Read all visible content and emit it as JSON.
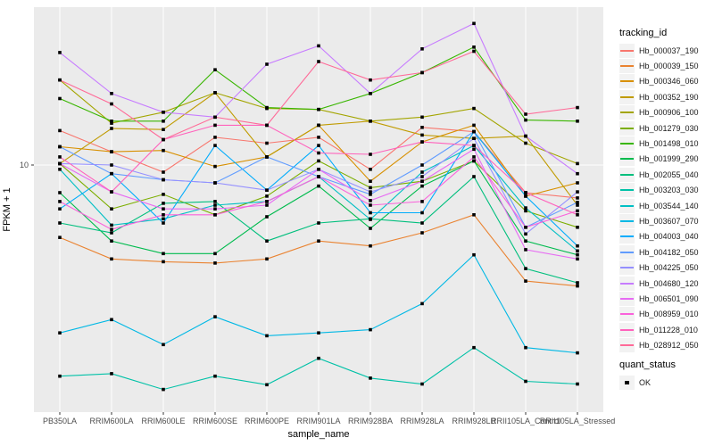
{
  "figure": {
    "y_axis": {
      "title": "FPKM + 1",
      "tick_label": "10"
    },
    "x_axis": {
      "title": "sample_name"
    },
    "legend_title": "tracking_id",
    "quant_legend": {
      "title": "quant_status",
      "item_label": "OK"
    },
    "colors": {
      "panel_bg": "#EBEBEB",
      "gridline": "#FFFFFF",
      "legend_key_bg": "#F2F2F2",
      "point": "#000000",
      "tick_text": "#4D4D4D"
    }
  },
  "chart_data": {
    "type": "line",
    "title": "",
    "xlabel": "sample_name",
    "ylabel": "FPKM + 1",
    "y_scale": "log10",
    "y_ticks": [
      10
    ],
    "ylim": [
      1.7,
      31
    ],
    "grid": "major-only",
    "legend_position": "right",
    "point_marker": "black-square",
    "categories": [
      "PB350LA",
      "RRIM600LA",
      "RRIM600LE",
      "RRIM600SE",
      "RRIM600PE",
      "RRIM901LA",
      "RRIM928BA",
      "RRIM928LA",
      "RRIM928LB",
      "RRII105LA_Control",
      "RRII105LA_Stressed"
    ],
    "series": [
      {
        "name": "Hb_000037_190",
        "color": "#F8766D",
        "values": [
          12.8,
          11.0,
          9.5,
          12.2,
          11.7,
          12.2,
          9.7,
          13.1,
          12.7,
          8.2,
          7.9
        ]
      },
      {
        "name": "Hb_000039_150",
        "color": "#EA8331",
        "values": [
          5.95,
          5.1,
          5.0,
          4.95,
          5.1,
          5.8,
          5.6,
          6.15,
          7.0,
          4.35,
          4.2
        ]
      },
      {
        "name": "Hb_000346_060",
        "color": "#D89000",
        "values": [
          11.4,
          11.0,
          11.1,
          9.9,
          10.6,
          13.3,
          8.9,
          11.8,
          13.3,
          8.0,
          8.8
        ]
      },
      {
        "name": "Hb_000352_190",
        "color": "#C09B00",
        "values": [
          10.1,
          13.0,
          12.9,
          16.8,
          10.6,
          13.3,
          13.7,
          12.4,
          12.1,
          12.3,
          7.5
        ]
      },
      {
        "name": "Hb_000906_100",
        "color": "#A3A500",
        "values": [
          18.4,
          13.5,
          14.6,
          16.8,
          15.0,
          14.9,
          13.7,
          14.1,
          15.0,
          11.7,
          10.1
        ]
      },
      {
        "name": "Hb_001279_030",
        "color": "#7CAE00",
        "values": [
          10.1,
          7.3,
          8.1,
          7.0,
          8.0,
          10.3,
          8.5,
          8.9,
          10.3,
          7.2,
          6.4
        ]
      },
      {
        "name": "Hb_001498_010",
        "color": "#39B600",
        "values": [
          16.1,
          13.7,
          13.7,
          19.8,
          15.1,
          14.9,
          16.7,
          19.4,
          23.3,
          13.8,
          13.7
        ]
      },
      {
        "name": "Hb_001999_290",
        "color": "#00BB4E",
        "values": [
          8.2,
          5.8,
          5.3,
          5.3,
          6.9,
          8.6,
          6.35,
          8.6,
          10.3,
          5.8,
          5.25
        ]
      },
      {
        "name": "Hb_002055_040",
        "color": "#00BF7D",
        "values": [
          6.6,
          6.15,
          7.6,
          7.7,
          5.8,
          6.6,
          6.8,
          6.6,
          9.2,
          4.76,
          4.3
        ]
      },
      {
        "name": "Hb_003203_030",
        "color": "#00C1A7",
        "values": [
          2.2,
          2.24,
          2.0,
          2.2,
          2.07,
          2.5,
          2.17,
          2.08,
          2.7,
          2.12,
          2.08
        ]
      },
      {
        "name": "Hb_003544_140",
        "color": "#00BFC4",
        "values": [
          9.7,
          6.5,
          6.8,
          7.5,
          7.7,
          9.2,
          6.77,
          9.5,
          11.5,
          7.35,
          5.4
        ]
      },
      {
        "name": "Hb_003607_070",
        "color": "#00B8E5",
        "values": [
          3.0,
          3.3,
          2.76,
          3.37,
          2.94,
          3.0,
          3.07,
          3.7,
          5.25,
          2.7,
          2.6
        ]
      },
      {
        "name": "Hb_004003_040",
        "color": "#00ACFC",
        "values": [
          7.3,
          9.4,
          6.6,
          11.5,
          8.35,
          11.5,
          7.1,
          7.1,
          12.7,
          8.0,
          5.6
        ]
      },
      {
        "name": "Hb_004182_050",
        "color": "#619CFF",
        "values": [
          11.4,
          9.4,
          9.0,
          8.8,
          10.6,
          9.2,
          8.1,
          10.0,
          12.7,
          6.4,
          7.65
        ]
      },
      {
        "name": "Hb_004225_050",
        "color": "#9590FF",
        "values": [
          10.1,
          10.0,
          9.0,
          8.8,
          8.35,
          9.7,
          8.25,
          9.2,
          12.1,
          6.1,
          8.25
        ]
      },
      {
        "name": "Hb_004680_120",
        "color": "#C77CFF",
        "values": [
          22.4,
          16.7,
          14.6,
          14.1,
          20.6,
          23.5,
          16.7,
          23.0,
          27.6,
          12.3,
          9.4
        ]
      },
      {
        "name": "Hb_006501_090",
        "color": "#E76BF3",
        "values": [
          10.1,
          8.25,
          7.3,
          7.3,
          7.5,
          9.7,
          7.75,
          8.9,
          11.2,
          5.45,
          5.1
        ]
      },
      {
        "name": "Hb_008959_010",
        "color": "#FA62DB",
        "values": [
          7.7,
          6.3,
          7.0,
          7.0,
          7.7,
          9.2,
          7.5,
          7.7,
          10.6,
          6.4,
          7.2
        ]
      },
      {
        "name": "Hb_011228_010",
        "color": "#FF62BC",
        "values": [
          10.6,
          8.25,
          12.0,
          13.3,
          13.3,
          10.9,
          10.8,
          11.8,
          11.5,
          8.2,
          7.0
        ]
      },
      {
        "name": "Hb_028912_050",
        "color": "#FF6A98",
        "values": [
          18.4,
          15.5,
          12.0,
          14.1,
          13.3,
          21.0,
          18.4,
          19.4,
          22.6,
          14.4,
          15.1
        ]
      }
    ],
    "quant_status_values": [
      "OK"
    ]
  }
}
